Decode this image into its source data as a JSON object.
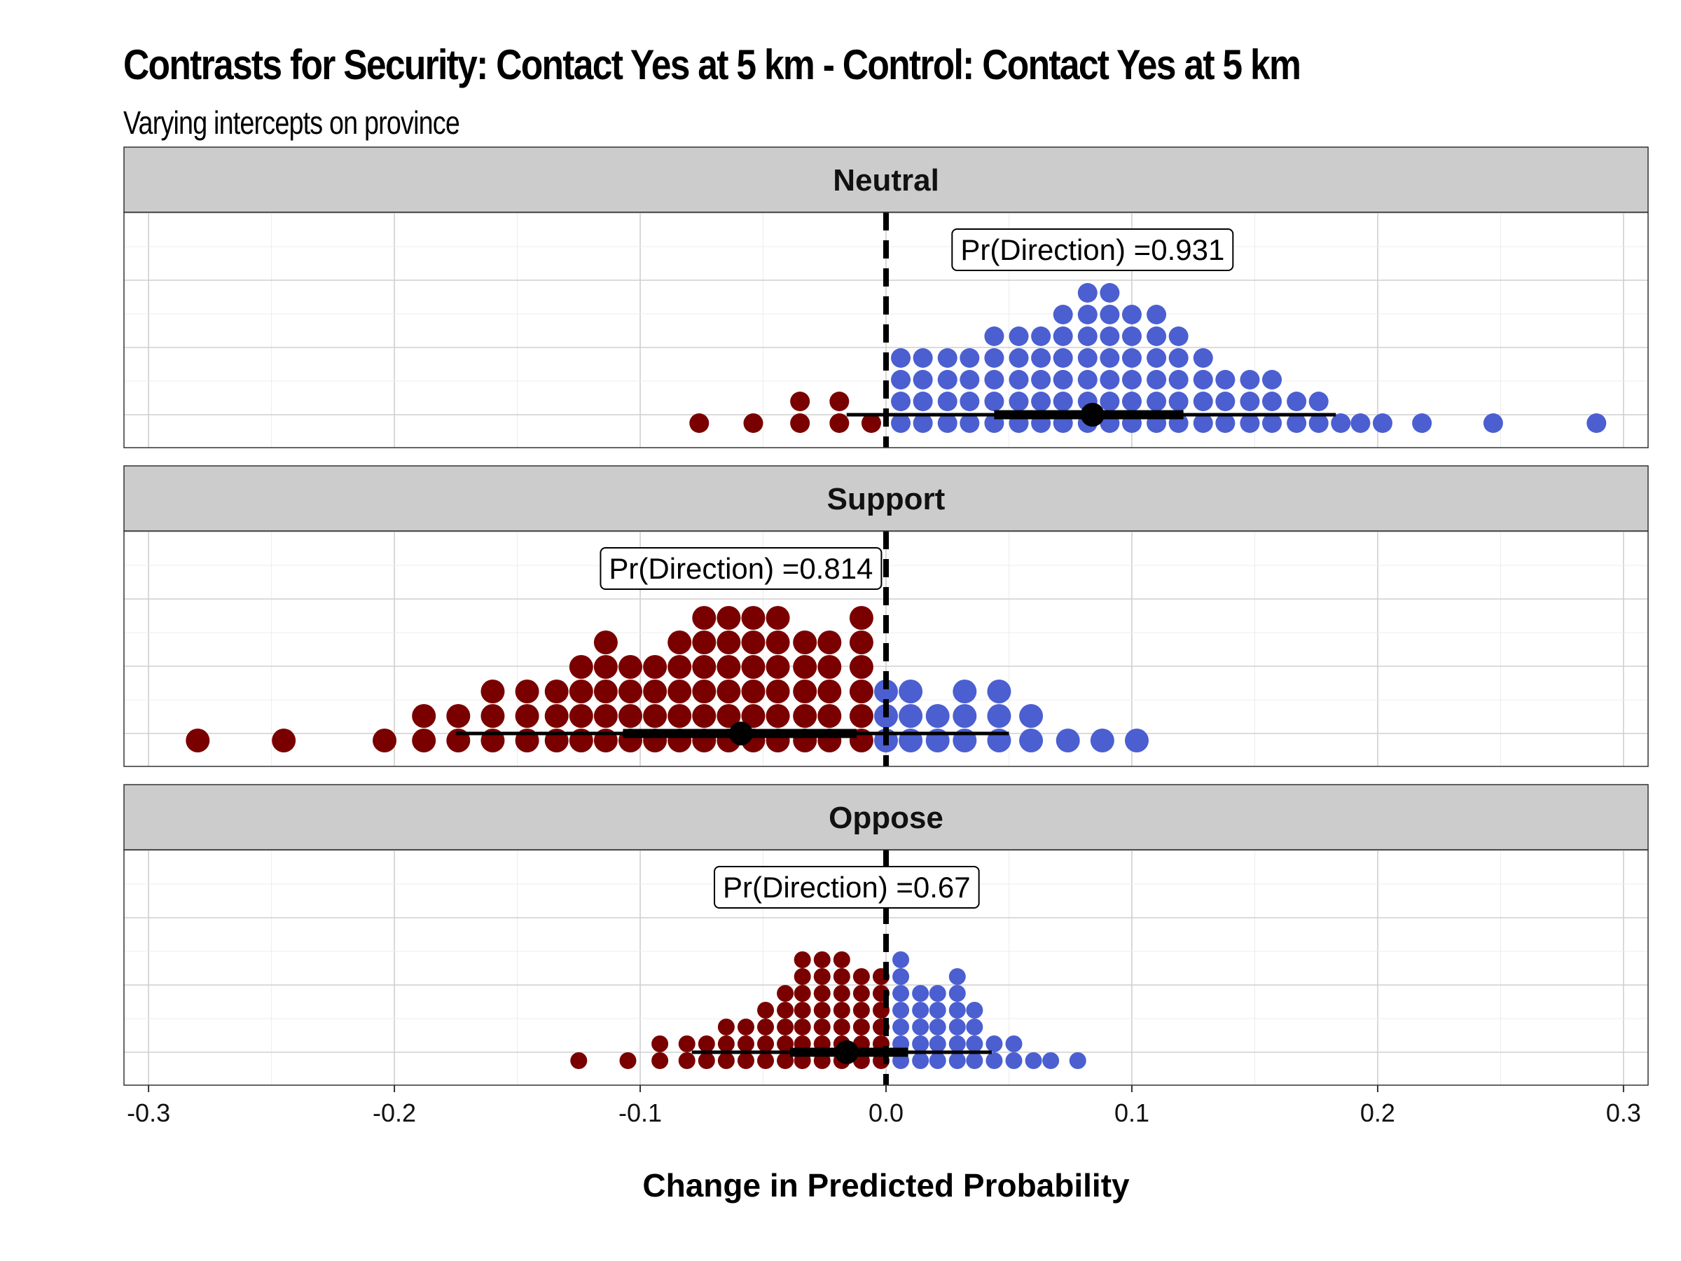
{
  "chart_data": {
    "type": "dotplot",
    "title": "Contrasts for Security: Contact Yes at 5 km - Control: Contact Yes at 5 km",
    "subtitle": "Varying intercepts on province",
    "xlabel": "Change in Predicted Probability",
    "xlim": [
      -0.31,
      0.31
    ],
    "xticks": [
      -0.3,
      -0.2,
      -0.1,
      0.0,
      0.1,
      0.2,
      0.3
    ],
    "xtick_labels": [
      "-0.3",
      "-0.2",
      "-0.1",
      "0.0",
      "0.1",
      "0.2",
      "0.3"
    ],
    "reference_line": 0,
    "grid": true,
    "colors": {
      "negative": "#7a0000",
      "positive": "#4b5fd1",
      "estimate": "#000000",
      "strip": "#cccccc"
    },
    "panels": [
      {
        "label": "Neutral",
        "annotation": "Pr(Direction) =0.931",
        "point_estimate": 0.084,
        "interval_inner": [
          0.044,
          0.121
        ],
        "interval_outer": [
          -0.016,
          0.183
        ],
        "dot_stacks": [
          {
            "x": -0.076,
            "n": 1
          },
          {
            "x": -0.054,
            "n": 1
          },
          {
            "x": -0.035,
            "n": 2
          },
          {
            "x": -0.019,
            "n": 2
          },
          {
            "x": -0.006,
            "n": 1
          },
          {
            "x": 0.006,
            "n": 4
          },
          {
            "x": 0.015,
            "n": 4
          },
          {
            "x": 0.025,
            "n": 4
          },
          {
            "x": 0.034,
            "n": 4
          },
          {
            "x": 0.044,
            "n": 5
          },
          {
            "x": 0.054,
            "n": 5
          },
          {
            "x": 0.063,
            "n": 5
          },
          {
            "x": 0.072,
            "n": 6
          },
          {
            "x": 0.082,
            "n": 7
          },
          {
            "x": 0.091,
            "n": 7
          },
          {
            "x": 0.1,
            "n": 6
          },
          {
            "x": 0.11,
            "n": 6
          },
          {
            "x": 0.119,
            "n": 5
          },
          {
            "x": 0.129,
            "n": 4
          },
          {
            "x": 0.138,
            "n": 3
          },
          {
            "x": 0.148,
            "n": 3
          },
          {
            "x": 0.157,
            "n": 3
          },
          {
            "x": 0.167,
            "n": 2
          },
          {
            "x": 0.176,
            "n": 2
          },
          {
            "x": 0.185,
            "n": 1
          },
          {
            "x": 0.193,
            "n": 1
          },
          {
            "x": 0.202,
            "n": 1
          },
          {
            "x": 0.218,
            "n": 1
          },
          {
            "x": 0.247,
            "n": 1
          },
          {
            "x": 0.289,
            "n": 1
          }
        ]
      },
      {
        "label": "Support",
        "annotation": "Pr(Direction) =0.814",
        "point_estimate": -0.059,
        "interval_inner": [
          -0.107,
          -0.012
        ],
        "interval_outer": [
          -0.175,
          0.05
        ],
        "dot_stacks": [
          {
            "x": -0.28,
            "n": 1
          },
          {
            "x": -0.245,
            "n": 1
          },
          {
            "x": -0.204,
            "n": 1
          },
          {
            "x": -0.188,
            "n": 2
          },
          {
            "x": -0.174,
            "n": 2
          },
          {
            "x": -0.16,
            "n": 3
          },
          {
            "x": -0.146,
            "n": 3
          },
          {
            "x": -0.134,
            "n": 3
          },
          {
            "x": -0.124,
            "n": 4
          },
          {
            "x": -0.114,
            "n": 5
          },
          {
            "x": -0.104,
            "n": 4
          },
          {
            "x": -0.094,
            "n": 4
          },
          {
            "x": -0.084,
            "n": 5
          },
          {
            "x": -0.074,
            "n": 6
          },
          {
            "x": -0.064,
            "n": 6
          },
          {
            "x": -0.054,
            "n": 6
          },
          {
            "x": -0.044,
            "n": 6
          },
          {
            "x": -0.033,
            "n": 5
          },
          {
            "x": -0.023,
            "n": 5
          },
          {
            "x": -0.01,
            "n": 6
          },
          {
            "x": 0.0,
            "n": 3
          },
          {
            "x": 0.01,
            "n": 3
          },
          {
            "x": 0.021,
            "n": 2
          },
          {
            "x": 0.032,
            "n": 3
          },
          {
            "x": 0.046,
            "n": 3
          },
          {
            "x": 0.059,
            "n": 2
          },
          {
            "x": 0.074,
            "n": 1
          },
          {
            "x": 0.088,
            "n": 1
          },
          {
            "x": 0.102,
            "n": 1
          }
        ]
      },
      {
        "label": "Oppose",
        "annotation": "Pr(Direction) =0.67",
        "point_estimate": -0.016,
        "interval_inner": [
          -0.039,
          0.009
        ],
        "interval_outer": [
          -0.079,
          0.043
        ],
        "dot_stacks": [
          {
            "x": -0.125,
            "n": 1
          },
          {
            "x": -0.105,
            "n": 1
          },
          {
            "x": -0.092,
            "n": 2
          },
          {
            "x": -0.081,
            "n": 2
          },
          {
            "x": -0.073,
            "n": 2
          },
          {
            "x": -0.065,
            "n": 3
          },
          {
            "x": -0.057,
            "n": 3
          },
          {
            "x": -0.049,
            "n": 4
          },
          {
            "x": -0.041,
            "n": 5
          },
          {
            "x": -0.034,
            "n": 7
          },
          {
            "x": -0.026,
            "n": 7
          },
          {
            "x": -0.018,
            "n": 7
          },
          {
            "x": -0.01,
            "n": 6
          },
          {
            "x": -0.002,
            "n": 6
          },
          {
            "x": 0.006,
            "n": 7
          },
          {
            "x": 0.014,
            "n": 5
          },
          {
            "x": 0.021,
            "n": 5
          },
          {
            "x": 0.029,
            "n": 6
          },
          {
            "x": 0.036,
            "n": 4
          },
          {
            "x": 0.044,
            "n": 2
          },
          {
            "x": 0.052,
            "n": 2
          },
          {
            "x": 0.06,
            "n": 1
          },
          {
            "x": 0.067,
            "n": 1
          },
          {
            "x": 0.078,
            "n": 1
          }
        ]
      }
    ]
  }
}
